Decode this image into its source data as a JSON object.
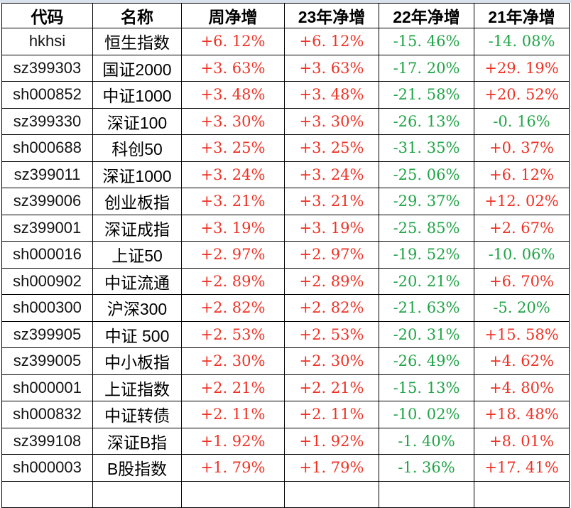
{
  "colors": {
    "positive_red": "#ee3124",
    "negative_green": "#21a447",
    "border": "#000000",
    "top_strip": "#d9e2ec"
  },
  "table": {
    "columns": [
      {
        "key": "code",
        "label": "代码"
      },
      {
        "key": "name",
        "label": "名称"
      },
      {
        "key": "week",
        "label": "周净增"
      },
      {
        "key": "y23",
        "label": "23年净增"
      },
      {
        "key": "y22",
        "label": "22年净增"
      },
      {
        "key": "y21",
        "label": "21年净增"
      }
    ],
    "rows": [
      {
        "code": "hkhsi",
        "name": "恒生指数",
        "week": "+6. 12%",
        "y23": "+6. 12%",
        "y22": "-15. 46%",
        "y21": "-14. 08%"
      },
      {
        "code": "sz399303",
        "name": "国证2000",
        "week": "+3. 63%",
        "y23": "+3. 63%",
        "y22": "-17. 20%",
        "y21": "+29. 19%"
      },
      {
        "code": "sh000852",
        "name": "中证1000",
        "week": "+3. 48%",
        "y23": "+3. 48%",
        "y22": "-21. 58%",
        "y21": "+20. 52%"
      },
      {
        "code": "sz399330",
        "name": "深证100",
        "week": "+3. 30%",
        "y23": "+3. 30%",
        "y22": "-26. 13%",
        "y21": "-0. 16%"
      },
      {
        "code": "sh000688",
        "name": "科创50",
        "week": "+3. 25%",
        "y23": "+3. 25%",
        "y22": "-31. 35%",
        "y21": "+0. 37%"
      },
      {
        "code": "sz399011",
        "name": "深证1000",
        "week": "+3. 24%",
        "y23": "+3. 24%",
        "y22": "-25. 06%",
        "y21": "+6. 12%"
      },
      {
        "code": "sz399006",
        "name": "创业板指",
        "week": "+3. 21%",
        "y23": "+3. 21%",
        "y22": "-29. 37%",
        "y21": "+12. 02%"
      },
      {
        "code": "sz399001",
        "name": "深证成指",
        "week": "+3. 19%",
        "y23": "+3. 19%",
        "y22": "-25. 85%",
        "y21": "+2. 67%"
      },
      {
        "code": "sh000016",
        "name": "上证50",
        "week": "+2. 97%",
        "y23": "+2. 97%",
        "y22": "-19. 52%",
        "y21": "-10. 06%"
      },
      {
        "code": "sh000902",
        "name": "中证流通",
        "week": "+2. 89%",
        "y23": "+2. 89%",
        "y22": "-20. 21%",
        "y21": "+6. 70%"
      },
      {
        "code": "sh000300",
        "name": "沪深300",
        "week": "+2. 82%",
        "y23": "+2. 82%",
        "y22": "-21. 63%",
        "y21": "-5. 20%"
      },
      {
        "code": "sz399905",
        "name": "中证 500",
        "week": "+2. 53%",
        "y23": "+2. 53%",
        "y22": "-20. 31%",
        "y21": "+15. 58%"
      },
      {
        "code": "sz399005",
        "name": "中小板指",
        "week": "+2. 30%",
        "y23": "+2. 30%",
        "y22": "-26. 49%",
        "y21": "+4. 62%"
      },
      {
        "code": "sh000001",
        "name": "上证指数",
        "week": "+2. 21%",
        "y23": "+2. 21%",
        "y22": "-15. 13%",
        "y21": "+4. 80%"
      },
      {
        "code": "sh000832",
        "name": "中证转债",
        "week": "+2. 11%",
        "y23": "+2. 11%",
        "y22": "-10. 02%",
        "y21": "+18. 48%"
      },
      {
        "code": "sz399108",
        "name": "深证B指",
        "week": "+1. 92%",
        "y23": "+1. 92%",
        "y22": "-1. 40%",
        "y21": "+8. 01%"
      },
      {
        "code": "sh000003",
        "name": "B股指数",
        "week": "+1. 79%",
        "y23": "+1. 79%",
        "y22": "-1. 36%",
        "y21": "+17. 41%"
      }
    ]
  }
}
